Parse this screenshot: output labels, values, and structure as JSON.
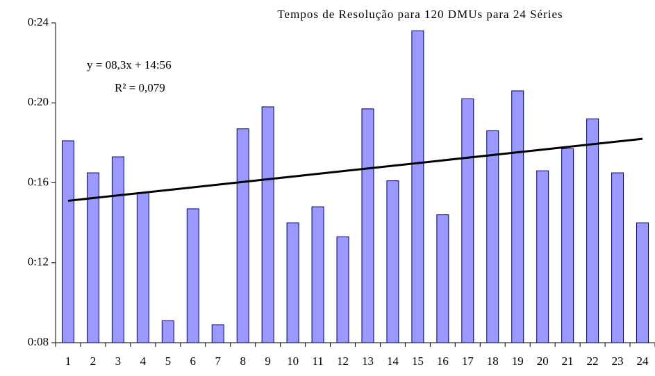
{
  "chart_data": {
    "type": "bar",
    "title": "Tempos de Resolução para 120 DMUs para 24 Séries",
    "annotations": [
      "y = 08,3x + 14:56",
      "R² = 0,079"
    ],
    "categories": [
      "1",
      "2",
      "3",
      "4",
      "5",
      "6",
      "7",
      "8",
      "9",
      "10",
      "11",
      "12",
      "13",
      "14",
      "15",
      "16",
      "17",
      "18",
      "19",
      "20",
      "21",
      "22",
      "23",
      "24"
    ],
    "values": [
      18.1,
      16.5,
      17.3,
      15.5,
      9.1,
      14.7,
      8.9,
      18.7,
      19.8,
      14.0,
      14.8,
      13.3,
      19.7,
      16.1,
      23.6,
      14.4,
      20.2,
      18.6,
      20.6,
      16.6,
      17.7,
      19.2,
      16.5,
      14.0
    ],
    "color": "#9999ff",
    "trendline": {
      "values": [
        15.1,
        18.2
      ],
      "color": "#000000"
    },
    "ylim": [
      8,
      24
    ],
    "yticks": [
      {
        "value": 8,
        "label": "0:08"
      },
      {
        "value": 12,
        "label": "0:12"
      },
      {
        "value": 16,
        "label": "0:16"
      },
      {
        "value": 20,
        "label": "0:20"
      },
      {
        "value": 24,
        "label": "0:24"
      }
    ],
    "grid": false
  }
}
